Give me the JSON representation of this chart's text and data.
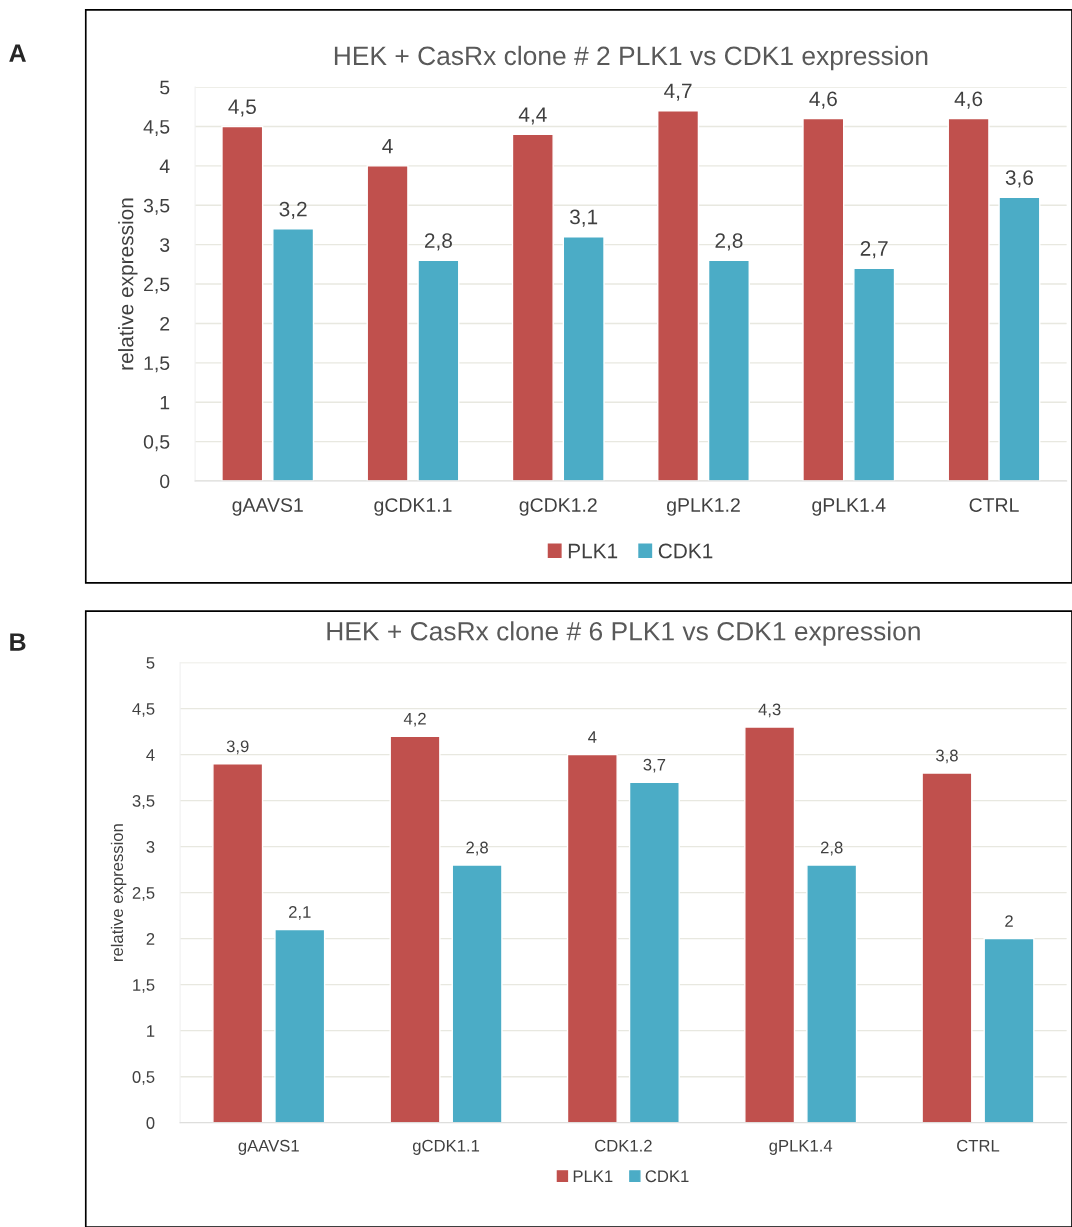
{
  "chart_data": [
    {
      "type": "bar",
      "title": "HEK + CasRx clone # 2 PLK1 vs CDK1 expression",
      "ylabel": "relative expression",
      "annotations": [
        "A"
      ],
      "categories": [
        "gAAVS1",
        "gCDK1.1",
        "gCDK1.2",
        "gPLK1.2",
        "gPLK1.4",
        "CTRL"
      ],
      "series": [
        {
          "name": "PLK1",
          "color": "#c0504d",
          "values": [
            4.5,
            4,
            4.4,
            4.7,
            4.6,
            4.6
          ],
          "value_labels": [
            "4,5",
            "4",
            "4,4",
            "4,7",
            "4,6",
            "4,6"
          ]
        },
        {
          "name": "CDK1",
          "color": "#4bacc6",
          "values": [
            3.2,
            2.8,
            3.1,
            2.8,
            2.7,
            3.6
          ],
          "value_labels": [
            "3,2",
            "2,8",
            "3,1",
            "2,8",
            "2,7",
            "3,6"
          ]
        }
      ],
      "ylim": [
        0,
        5
      ],
      "yticks": [
        0,
        {
          "value": 0.5,
          "label": "0,5"
        },
        1,
        {
          "value": 1.5,
          "label": "1,5"
        },
        2,
        {
          "value": 2.5,
          "label": "2,5"
        },
        3,
        {
          "value": 3.5,
          "label": "3,5"
        },
        4,
        {
          "value": 4.5,
          "label": "4,5"
        },
        5
      ],
      "grid": "y",
      "legend": "bottom"
    },
    {
      "type": "bar",
      "title": "HEK + CasRx clone # 6 PLK1 vs CDK1 expression",
      "ylabel": "relative expression",
      "annotations": [
        "B"
      ],
      "categories": [
        "gAAVS1",
        "gCDK1.1",
        "CDK1.2",
        "gPLK1.4",
        "CTRL"
      ],
      "series": [
        {
          "name": "PLK1",
          "color": "#c0504d",
          "values": [
            3.9,
            4.2,
            4,
            4.3,
            3.8
          ],
          "value_labels": [
            "3,9",
            "4,2",
            "4",
            "4,3",
            "3,8"
          ]
        },
        {
          "name": "CDK1",
          "color": "#4bacc6",
          "values": [
            2.1,
            2.8,
            3.7,
            2.8,
            2
          ],
          "value_labels": [
            "2,1",
            "2,8",
            "3,7",
            "2,8",
            "2"
          ]
        }
      ],
      "ylim": [
        0,
        5
      ],
      "yticks": [
        0,
        {
          "value": 0.5,
          "label": "0,5"
        },
        1,
        {
          "value": 1.5,
          "label": "1,5"
        },
        2,
        {
          "value": 2.5,
          "label": "2,5"
        },
        3,
        {
          "value": 3.5,
          "label": "3,5"
        },
        4,
        {
          "value": 4.5,
          "label": "4,5"
        },
        5
      ],
      "grid": "y",
      "legend": "bottom"
    }
  ]
}
